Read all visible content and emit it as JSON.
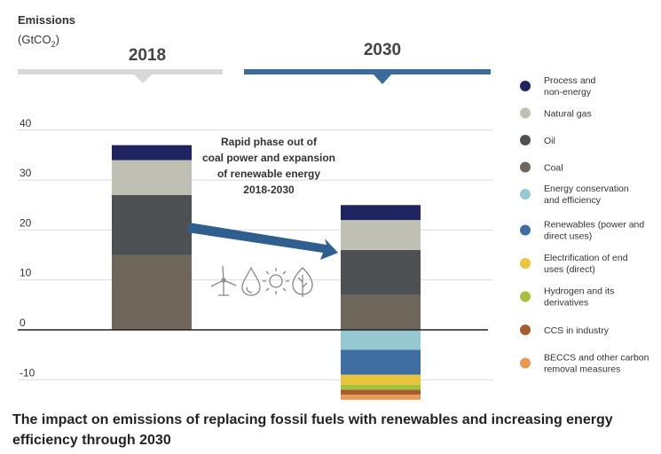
{
  "chart_data": {
    "type": "bar",
    "stacked": true,
    "ylabel": "Emissions",
    "yunit_prefix": "(GtCO",
    "yunit_sub": "2",
    "yunit_suffix": ")",
    "ylim": [
      -14,
      42
    ],
    "yticks": [
      40,
      30,
      20,
      10,
      0,
      -10
    ],
    "categories": [
      "2018",
      "2030"
    ],
    "series": [
      {
        "name": "Coal",
        "color": "#6e665a",
        "values": [
          15,
          7
        ]
      },
      {
        "name": "Oil",
        "color": "#4d5154",
        "values": [
          12,
          9
        ]
      },
      {
        "name": "Natural gas",
        "color": "#bfbfb3",
        "values": [
          7,
          6
        ]
      },
      {
        "name": "Process and non-energy",
        "color": "#1f2461",
        "values": [
          3,
          3
        ]
      },
      {
        "name": "Energy conservation and efficiency",
        "color": "#95c8d0",
        "values": [
          0,
          -4
        ]
      },
      {
        "name": "Renewables (power and direct uses)",
        "color": "#3f6ea3",
        "values": [
          0,
          -5
        ]
      },
      {
        "name": "Electrification of end uses (direct)",
        "color": "#e8c53a",
        "values": [
          0,
          -2
        ]
      },
      {
        "name": "Hydrogen and its derivatives",
        "color": "#a5c23e",
        "values": [
          0,
          -1
        ]
      },
      {
        "name": "CCS in industry",
        "color": "#a65c2e",
        "values": [
          0,
          -1
        ]
      },
      {
        "name": "BECCS and other carbon removal measures",
        "color": "#e89a52",
        "values": [
          0,
          -1
        ]
      }
    ],
    "legend": [
      {
        "line1": "Process and",
        "line2": "non-energy",
        "color": "#1f2461"
      },
      {
        "line1": "Natural gas",
        "line2": "",
        "color": "#bfbfb3"
      },
      {
        "line1": "Oil",
        "line2": "",
        "color": "#4d5154"
      },
      {
        "line1": "Coal",
        "line2": "",
        "color": "#6e665a"
      },
      {
        "line1": "Energy conservation",
        "line2": "and efficiency",
        "color": "#95c8d0"
      },
      {
        "line1": "Renewables (power and",
        "line2": "direct uses)",
        "color": "#3f6ea3"
      },
      {
        "line1": "Electrification of end",
        "line2": "uses (direct)",
        "color": "#e8c53a"
      },
      {
        "line1": "Hydrogen and its",
        "line2": "derivatives",
        "color": "#a5c23e"
      },
      {
        "line1": "CCS in industry",
        "line2": "",
        "color": "#a65c2e"
      },
      {
        "line1": "BECCS and other carbon",
        "line2": "removal measures",
        "color": "#e89a52"
      }
    ],
    "annotation": [
      "Rapid phase out of",
      "coal power and expansion",
      "of renewable energy",
      "2018-2030"
    ],
    "header_colors": {
      "2018": "#d9d9d9",
      "2030": "#3a6b99"
    },
    "arrow_color": "#2e5f8e",
    "icon_color": "#888888"
  },
  "caption": "The impact on emissions of replacing fossil fuels with renewables and increasing energy efficiency through 2030"
}
